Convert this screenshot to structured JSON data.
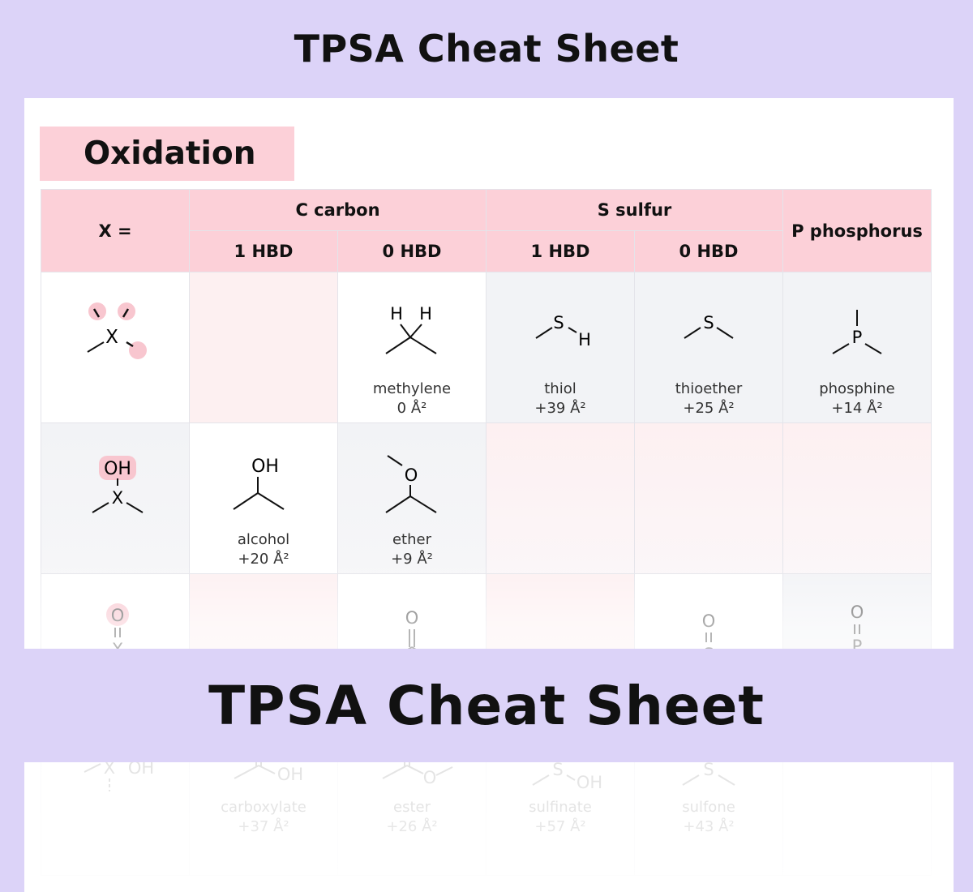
{
  "page": {
    "title": "TPSA Cheat Sheet",
    "banner": "TPSA Cheat Sheet"
  },
  "section": {
    "title": "Oxidation"
  },
  "table": {
    "corner_label": "X =",
    "groups": [
      {
        "label": "C carbon"
      },
      {
        "label": "S sulfur"
      },
      {
        "label": "P phosphorus"
      }
    ],
    "subheaders": [
      "1 HBD",
      "0 HBD",
      "1 HBD",
      "0 HBD"
    ],
    "entries": {
      "methylene": {
        "name": "methylene",
        "value": "0 Å²"
      },
      "thiol": {
        "name": "thiol",
        "value": "+39 Å²"
      },
      "thioether": {
        "name": "thioether",
        "value": "+25 Å²"
      },
      "phosphine": {
        "name": "phosphine",
        "value": "+14 Å²"
      },
      "alcohol": {
        "name": "alcohol",
        "value": "+20 Å²"
      },
      "ether": {
        "name": "ether",
        "value": "+9 Å²"
      },
      "carboxylate": {
        "name": "carboxylate",
        "value": "+37 Å²"
      },
      "ester": {
        "name": "ester",
        "value": "+26 Å²"
      },
      "sulfinate": {
        "name": "sulfinate",
        "value": "+57 Å²"
      },
      "sulfone": {
        "name": "sulfone",
        "value": "+43 Å²"
      }
    },
    "atoms": {
      "x": "X",
      "h": "H",
      "s": "S",
      "p": "P",
      "o": "O",
      "oh": "OH"
    }
  },
  "colors": {
    "header_pink": "#fcd0d8",
    "page_lavender": "#dcd3f8",
    "highlight_pink": "#f8c6cf"
  }
}
